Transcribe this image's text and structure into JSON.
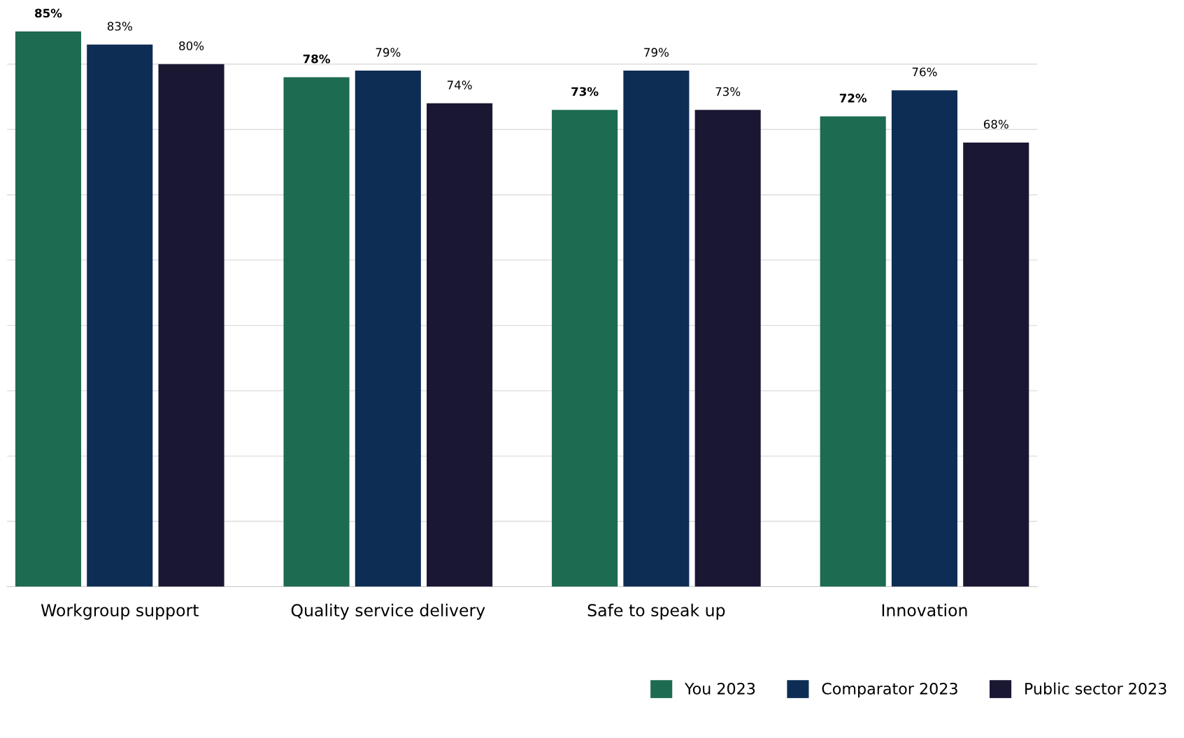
{
  "chart_data": {
    "type": "bar",
    "categories": [
      "Workgroup support",
      "Quality service delivery",
      "Safe to speak up",
      "Innovation"
    ],
    "series": [
      {
        "name": "You 2023",
        "color": "#1d6b50",
        "values": [
          85,
          78,
          73,
          72
        ],
        "value_labels": [
          "85%",
          "78%",
          "73%",
          "72%"
        ]
      },
      {
        "name": "Comparator 2023",
        "color": "#0e2d55",
        "values": [
          83,
          79,
          79,
          76
        ],
        "value_labels": [
          "83%",
          "79%",
          "79%",
          "76%"
        ]
      },
      {
        "name": "Public sector 2023",
        "color": "#1a1733",
        "values": [
          80,
          74,
          73,
          68
        ],
        "value_labels": [
          "80%",
          "74%",
          "73%",
          "68%"
        ]
      }
    ],
    "grid": "y",
    "legend": "bottom right",
    "tick_labels": "x"
  }
}
